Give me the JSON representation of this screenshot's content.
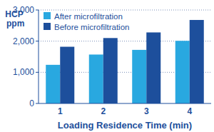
{
  "chart_data": {
    "type": "bar",
    "x_label": "Loading Residence Time (min)",
    "y_label": "HCP ppm",
    "categories": [
      "1",
      "2",
      "3",
      "4"
    ],
    "series": [
      {
        "name": "After microfiltration",
        "color": "#29a8e0",
        "values": [
          1240,
          1570,
          1720,
          2010
        ]
      },
      {
        "name": "Before microfiltration",
        "color": "#1d4f9c",
        "values": [
          1820,
          2100,
          2280,
          2680
        ]
      }
    ],
    "ylim": [
      0,
      3000
    ],
    "yticks": [
      0,
      {
        "value": 1000,
        "label": "1,000"
      },
      {
        "value": 2000,
        "label": "2,000"
      },
      {
        "value": 3000,
        "label": "3,000"
      }
    ],
    "grid": true,
    "legend": "upper-left"
  }
}
